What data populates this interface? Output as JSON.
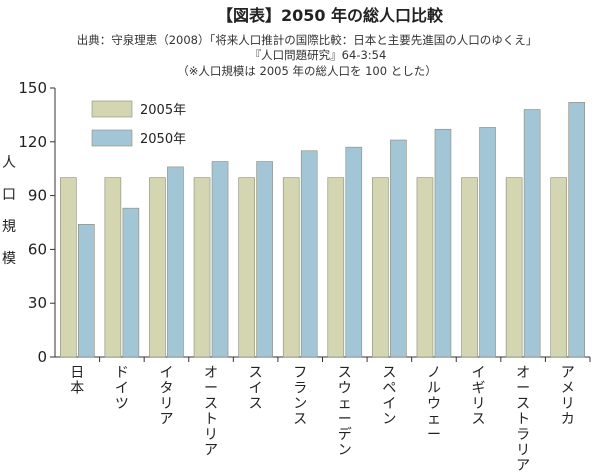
{
  "chart_data": {
    "type": "bar",
    "title": "【図表】2050 年の総人口比較",
    "notes": [
      "出典：守泉理恵（2008）「将来人口推計の国際比較：日本と主要先進国の人口のゆくえ」",
      "『人口問題研究』64-3:54",
      "（※人口規模は 2005 年の総人口を 100 とした）"
    ],
    "ylabel": "人口規模",
    "xlabel": "",
    "ylim": [
      0,
      150
    ],
    "yticks": [
      0,
      30,
      60,
      90,
      120,
      150
    ],
    "categories": [
      "日本",
      "ドイツ",
      "イタリア",
      "オーストリア",
      "スイス",
      "フランス",
      "スウェーデン",
      "スペイン",
      "ノルウェー",
      "イギリス",
      "オーストラリア",
      "アメリカ"
    ],
    "series": [
      {
        "name": "2005年",
        "color": "#d3d6b0",
        "values": [
          100,
          100,
          100,
          100,
          100,
          100,
          100,
          100,
          100,
          100,
          100,
          100
        ]
      },
      {
        "name": "2050年",
        "color": "#a3c6d6",
        "values": [
          74,
          83,
          106,
          109,
          109,
          115,
          117,
          121,
          127,
          128,
          138,
          142
        ]
      }
    ],
    "legend_position": "top-left",
    "grid": false
  }
}
